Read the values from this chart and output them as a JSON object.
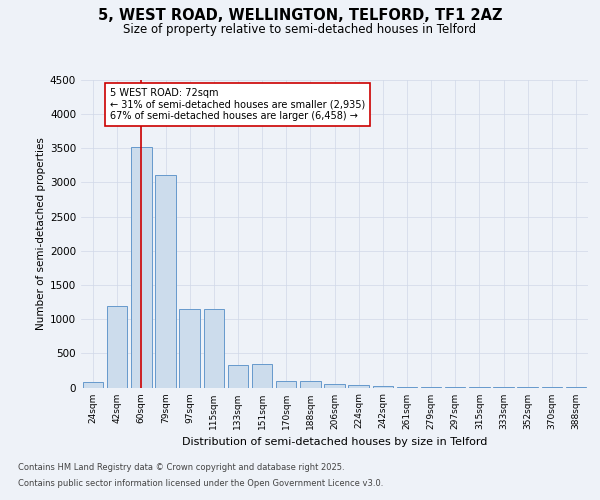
{
  "title_line1": "5, WEST ROAD, WELLINGTON, TELFORD, TF1 2AZ",
  "title_line2": "Size of property relative to semi-detached houses in Telford",
  "xlabel": "Distribution of semi-detached houses by size in Telford",
  "ylabel": "Number of semi-detached properties",
  "categories": [
    "24sqm",
    "42sqm",
    "60sqm",
    "79sqm",
    "97sqm",
    "115sqm",
    "133sqm",
    "151sqm",
    "170sqm",
    "188sqm",
    "206sqm",
    "224sqm",
    "242sqm",
    "261sqm",
    "279sqm",
    "297sqm",
    "315sqm",
    "333sqm",
    "352sqm",
    "370sqm",
    "388sqm"
  ],
  "values": [
    75,
    1200,
    3520,
    3110,
    1150,
    1150,
    335,
    340,
    100,
    90,
    55,
    35,
    15,
    10,
    5,
    5,
    3,
    2,
    2,
    1,
    1
  ],
  "bar_color": "#ccdcec",
  "bar_edge_color": "#6699cc",
  "property_bin_index": 2,
  "annotation_title": "5 WEST ROAD: 72sqm",
  "annotation_line2": "← 31% of semi-detached houses are smaller (2,935)",
  "annotation_line3": "67% of semi-detached houses are larger (6,458) →",
  "vline_color": "#cc0000",
  "annotation_box_color": "#ffffff",
  "annotation_box_edge": "#cc0000",
  "footnote1": "Contains HM Land Registry data © Crown copyright and database right 2025.",
  "footnote2": "Contains public sector information licensed under the Open Government Licence v3.0.",
  "ylim": [
    0,
    4500
  ],
  "yticks": [
    0,
    500,
    1000,
    1500,
    2000,
    2500,
    3000,
    3500,
    4000,
    4500
  ],
  "background_color": "#eef2f8",
  "plot_background": "#eef2f8",
  "grid_color": "#d0d8e8"
}
